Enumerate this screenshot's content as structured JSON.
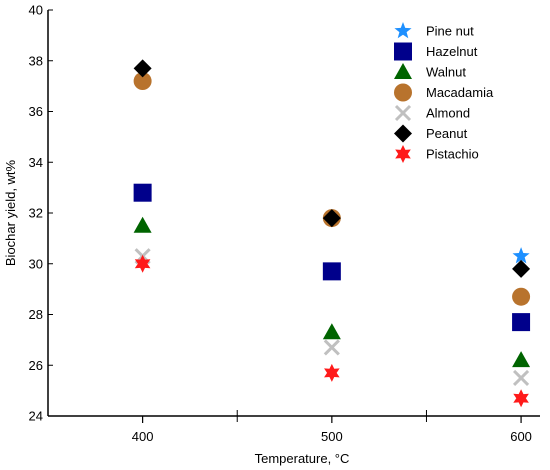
{
  "chart_data": {
    "type": "scatter",
    "xlabel": "Temperature, °C",
    "ylabel": "Biochar yield, wt%",
    "x_ticks": [
      400,
      500,
      600
    ],
    "y_ticks": [
      24,
      26,
      28,
      30,
      32,
      34,
      36,
      38,
      40
    ],
    "xlim": [
      350,
      610
    ],
    "ylim": [
      24,
      40
    ],
    "legend_position": "top-right",
    "grid": false,
    "series": [
      {
        "name": "Pine nut",
        "marker": "star5",
        "color": "#1e90ff",
        "points": [
          {
            "x": 400,
            "y": null
          },
          {
            "x": 500,
            "y": null
          },
          {
            "x": 600,
            "y": 30.3
          }
        ]
      },
      {
        "name": "Hazelnut",
        "marker": "square",
        "color": "#00008b",
        "points": [
          {
            "x": 400,
            "y": 32.8
          },
          {
            "x": 500,
            "y": 29.7
          },
          {
            "x": 600,
            "y": 27.7
          }
        ]
      },
      {
        "name": "Walnut",
        "marker": "triangle",
        "color": "#006400",
        "points": [
          {
            "x": 400,
            "y": 31.5
          },
          {
            "x": 500,
            "y": 27.3
          },
          {
            "x": 600,
            "y": 26.2
          }
        ]
      },
      {
        "name": "Macadamia",
        "marker": "circle",
        "color": "#b8732d",
        "points": [
          {
            "x": 400,
            "y": 37.2
          },
          {
            "x": 500,
            "y": 31.8
          },
          {
            "x": 600,
            "y": 28.7
          }
        ]
      },
      {
        "name": "Almond",
        "marker": "cross",
        "color": "#c0c0c0",
        "points": [
          {
            "x": 400,
            "y": 30.3
          },
          {
            "x": 500,
            "y": 26.7
          },
          {
            "x": 600,
            "y": 25.5
          }
        ]
      },
      {
        "name": "Peanut",
        "marker": "diamond",
        "color": "#000000",
        "points": [
          {
            "x": 400,
            "y": 37.7
          },
          {
            "x": 500,
            "y": 31.8
          },
          {
            "x": 600,
            "y": 29.8
          }
        ]
      },
      {
        "name": "Pistachio",
        "marker": "star6",
        "color": "#ff1a1a",
        "points": [
          {
            "x": 400,
            "y": 30.0
          },
          {
            "x": 500,
            "y": 25.7
          },
          {
            "x": 600,
            "y": 24.7
          }
        ]
      }
    ]
  }
}
